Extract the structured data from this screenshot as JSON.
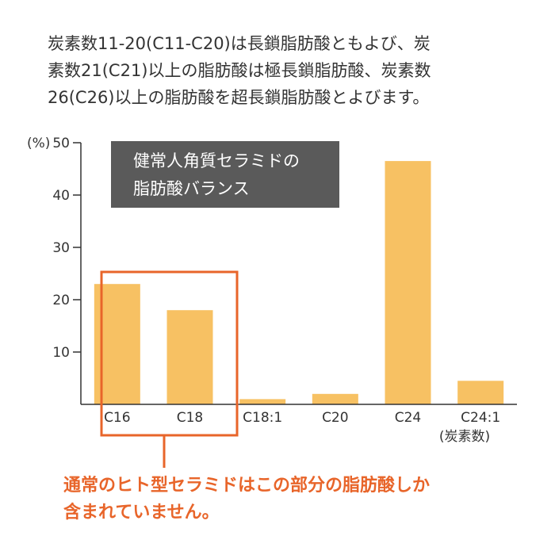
{
  "intro_text": {
    "line1": "炭素数11-20(C11-C20)は長鎖脂肪酸ともよび、炭",
    "line2": "素数21(C21)以上の脂肪酸は極長鎖脂肪酸、炭素数",
    "line3": "26(C26)以上の脂肪酸を超長鎖脂肪酸とよびます。"
  },
  "chart_data": {
    "type": "bar",
    "title_line1": "健常人角質セラミドの",
    "title_line2": "脂肪酸バランス",
    "ylabel": "(%)",
    "xlabel": "(炭素数)",
    "categories": [
      "C16",
      "C18",
      "C18:1",
      "C20",
      "C24",
      "C24:1"
    ],
    "values": [
      23,
      18,
      1,
      2,
      46.5,
      4.5
    ],
    "ylim": [
      0,
      50
    ],
    "yticks": [
      10,
      20,
      30,
      40,
      50
    ],
    "grid": false,
    "bar_color": "#f7c163",
    "title_box_color": "#5a5a5a",
    "highlight_categories": [
      "C16",
      "C18"
    ],
    "highlight_color": "#e8652a"
  },
  "callout": {
    "line1": "通常のヒト型セラミドはこの部分の脂肪酸しか",
    "line2": "含まれていません。"
  }
}
